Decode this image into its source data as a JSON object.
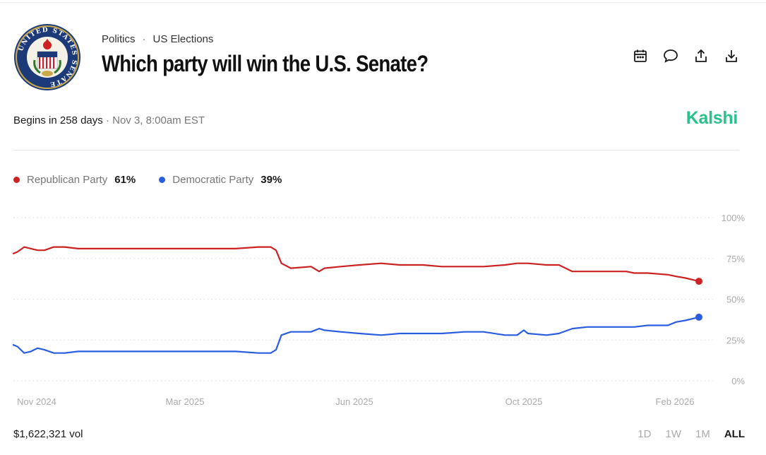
{
  "header": {
    "breadcrumb": [
      "Politics",
      "US Elections"
    ],
    "breadcrumb_separator": "·",
    "title": "Which party will win the U.S. Senate?",
    "seal": {
      "outer_text": "UNITED STATES SENATE",
      "icon": "us-senate-seal"
    }
  },
  "actions": [
    {
      "icon": "calendar-icon"
    },
    {
      "icon": "comment-icon"
    },
    {
      "icon": "share-icon"
    },
    {
      "icon": "download-icon"
    }
  ],
  "status": {
    "begins": "Begins in 258 days",
    "separator": "·",
    "date": "Nov 3, 8:00am EST"
  },
  "brand": {
    "name": "Kalshi",
    "color": "#28c28a"
  },
  "legend": [
    {
      "name": "Republican Party",
      "value": "61%",
      "color": "#cc2222"
    },
    {
      "name": "Democratic Party",
      "value": "39%",
      "color": "#2b5de0"
    }
  ],
  "footer": {
    "volume": "$1,622,321 vol",
    "ranges": [
      "1D",
      "1W",
      "1M",
      "ALL"
    ],
    "active_range": "ALL"
  },
  "chart_data": {
    "type": "line",
    "x_ticks": [
      "Nov 2024",
      "Mar 2025",
      "Jun 2025",
      "Oct 2025",
      "Feb 2026"
    ],
    "y_ticks": [
      "100%",
      "75%",
      "50%",
      "25%",
      "0%"
    ],
    "ylim": [
      0,
      100
    ],
    "xlim": [
      "2024-10-01",
      "2026-02-22"
    ],
    "grid": true,
    "series": [
      {
        "name": "Republican Party",
        "color": "#cc2222",
        "x": [
          "2024-10-01",
          "2024-10-04",
          "2024-10-09",
          "2024-10-14",
          "2024-10-19",
          "2024-10-24",
          "2024-10-31",
          "2024-11-08",
          "2024-11-18",
          "2024-12-01",
          "2024-12-15",
          "2025-01-01",
          "2025-01-15",
          "2025-02-01",
          "2025-02-15",
          "2025-03-01",
          "2025-03-15",
          "2025-04-01",
          "2025-04-10",
          "2025-04-14",
          "2025-04-18",
          "2025-04-25",
          "2025-05-10",
          "2025-05-16",
          "2025-05-20",
          "2025-06-01",
          "2025-06-15",
          "2025-07-01",
          "2025-07-15",
          "2025-08-01",
          "2025-08-15",
          "2025-09-01",
          "2025-09-15",
          "2025-10-01",
          "2025-10-10",
          "2025-10-15",
          "2025-10-18",
          "2025-11-01",
          "2025-11-10",
          "2025-11-20",
          "2025-12-01",
          "2025-12-20",
          "2025-12-30",
          "2026-01-05",
          "2026-01-15",
          "2026-01-30",
          "2026-02-05",
          "2026-02-12",
          "2026-02-22"
        ],
        "y": [
          78,
          79,
          82,
          81,
          80,
          80,
          82,
          82,
          81,
          81,
          81,
          81,
          81,
          81,
          81,
          81,
          81,
          82,
          82,
          80,
          72,
          69,
          70,
          67,
          69,
          70,
          71,
          72,
          71,
          71,
          70,
          70,
          70,
          71,
          72,
          72,
          72,
          71,
          71,
          67,
          67,
          67,
          67,
          66,
          66,
          65,
          64,
          63,
          61
        ]
      },
      {
        "name": "Democratic Party",
        "color": "#2b5de0",
        "x": [
          "2024-10-01",
          "2024-10-04",
          "2024-10-09",
          "2024-10-14",
          "2024-10-19",
          "2024-10-24",
          "2024-10-31",
          "2024-11-08",
          "2024-11-18",
          "2024-12-01",
          "2024-12-15",
          "2025-01-01",
          "2025-01-15",
          "2025-02-01",
          "2025-02-15",
          "2025-03-01",
          "2025-03-15",
          "2025-04-01",
          "2025-04-10",
          "2025-04-14",
          "2025-04-18",
          "2025-04-25",
          "2025-05-10",
          "2025-05-16",
          "2025-05-20",
          "2025-06-01",
          "2025-06-15",
          "2025-07-01",
          "2025-07-15",
          "2025-08-01",
          "2025-08-15",
          "2025-09-01",
          "2025-09-15",
          "2025-10-01",
          "2025-10-10",
          "2025-10-15",
          "2025-10-18",
          "2025-11-01",
          "2025-11-10",
          "2025-11-20",
          "2025-12-01",
          "2025-12-20",
          "2025-12-30",
          "2026-01-05",
          "2026-01-15",
          "2026-01-30",
          "2026-02-05",
          "2026-02-12",
          "2026-02-22"
        ],
        "y": [
          22,
          21,
          17,
          18,
          20,
          19,
          17,
          17,
          18,
          18,
          18,
          18,
          18,
          18,
          18,
          18,
          18,
          17,
          17,
          19,
          28,
          30,
          30,
          32,
          31,
          30,
          29,
          28,
          29,
          29,
          29,
          30,
          30,
          28,
          28,
          31,
          29,
          28,
          29,
          32,
          33,
          33,
          33,
          33,
          34,
          34,
          36,
          37,
          39
        ]
      }
    ]
  }
}
